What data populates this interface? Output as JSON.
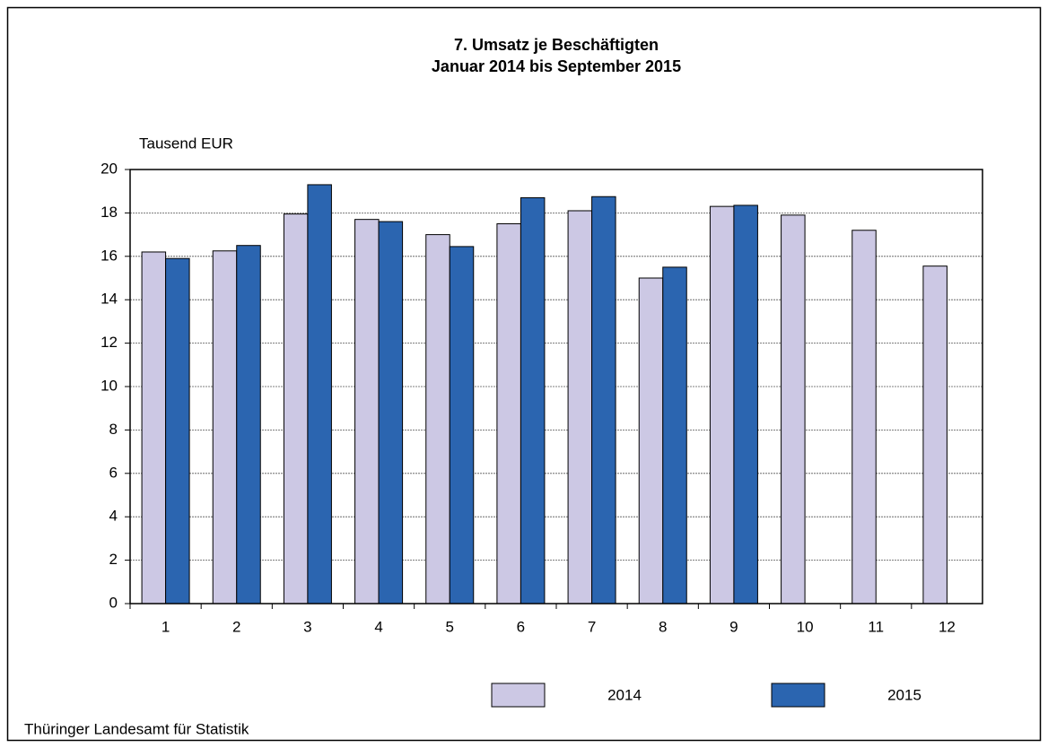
{
  "chart_data": {
    "type": "bar",
    "title": "7. Umsatz je Beschäftigten",
    "subtitle": "Januar 2014 bis September 2015",
    "y_label": "Tausend EUR",
    "source": "Thüringer Landesamt für Statistik",
    "categories": [
      "1",
      "2",
      "3",
      "4",
      "5",
      "6",
      "7",
      "8",
      "9",
      "10",
      "11",
      "12"
    ],
    "series": [
      {
        "name": "2014",
        "color": "#ccc8e4",
        "values": [
          16.2,
          16.25,
          17.95,
          17.7,
          17.0,
          17.5,
          18.1,
          15.0,
          18.3,
          17.9,
          17.2,
          15.55
        ]
      },
      {
        "name": "2015",
        "color": "#2b65b0",
        "values": [
          15.9,
          16.5,
          19.3,
          17.6,
          16.45,
          18.7,
          18.75,
          15.5,
          18.35,
          null,
          null,
          null
        ]
      }
    ],
    "ylim": [
      0,
      20
    ],
    "yticks": [
      0,
      2,
      4,
      6,
      8,
      10,
      12,
      14,
      16,
      18,
      20
    ],
    "grid": true,
    "legend": "bottom"
  }
}
